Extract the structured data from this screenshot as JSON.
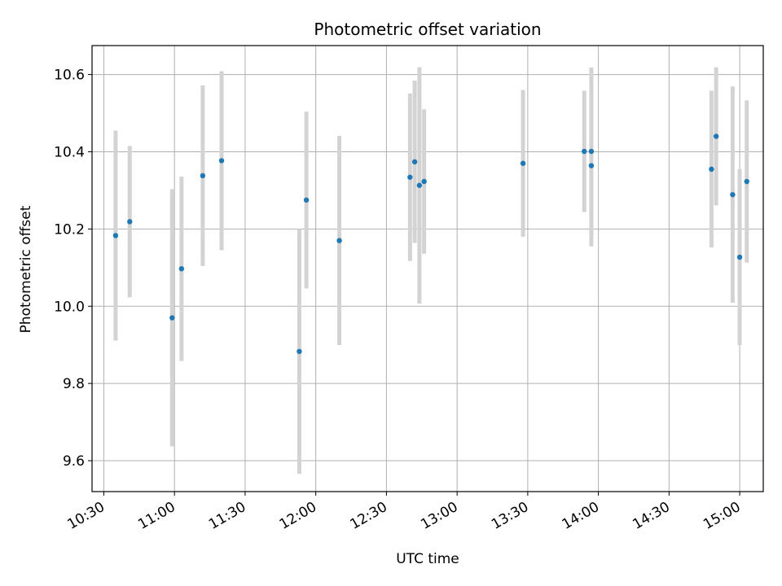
{
  "chart_data": {
    "type": "scatter",
    "title": "Photometric offset variation",
    "xlabel": "UTC time",
    "ylabel": "Photometric offset",
    "xlim": [
      "10:25",
      "15:10"
    ],
    "ylim": [
      9.52,
      10.675
    ],
    "grid": true,
    "x_ticks": [
      "10:30",
      "11:00",
      "11:30",
      "12:00",
      "12:30",
      "13:00",
      "13:30",
      "14:00",
      "14:30",
      "15:00"
    ],
    "y_ticks": [
      9.6,
      9.8,
      10.0,
      10.2,
      10.4,
      10.6
    ],
    "y_tick_labels": [
      "9.6",
      "9.8",
      "10.0",
      "10.2",
      "10.4",
      "10.6"
    ],
    "marker_color": "#1f77b4",
    "errorbar_color": "#d3d3d3",
    "series": [
      {
        "points": [
          {
            "t": "10:35",
            "y": 10.183,
            "err": 0.272
          },
          {
            "t": "10:41",
            "y": 10.219,
            "err": 0.196
          },
          {
            "t": "10:59",
            "y": 9.97,
            "err": 0.333
          },
          {
            "t": "11:03",
            "y": 10.097,
            "err": 0.239
          },
          {
            "t": "11:12",
            "y": 10.338,
            "err": 0.234
          },
          {
            "t": "11:20",
            "y": 10.377,
            "err": 0.232
          },
          {
            "t": "11:53",
            "y": 9.883,
            "err": 0.317
          },
          {
            "t": "11:56",
            "y": 10.275,
            "err": 0.229
          },
          {
            "t": "12:10",
            "y": 10.17,
            "err": 0.271
          },
          {
            "t": "12:40",
            "y": 10.334,
            "err": 0.217
          },
          {
            "t": "12:42",
            "y": 10.374,
            "err": 0.21
          },
          {
            "t": "12:44",
            "y": 10.313,
            "err": 0.306
          },
          {
            "t": "12:46",
            "y": 10.323,
            "err": 0.187
          },
          {
            "t": "13:28",
            "y": 10.37,
            "err": 0.19
          },
          {
            "t": "13:54",
            "y": 10.401,
            "err": 0.157
          },
          {
            "t": "13:57",
            "y": 10.364,
            "err": 0.209
          },
          {
            "t": "13:57",
            "y": 10.401,
            "err": 0.217
          },
          {
            "t": "14:48",
            "y": 10.355,
            "err": 0.203
          },
          {
            "t": "14:50",
            "y": 10.44,
            "err": 0.179
          },
          {
            "t": "14:57",
            "y": 10.289,
            "err": 0.28
          },
          {
            "t": "15:00",
            "y": 10.127,
            "err": 0.228
          },
          {
            "t": "15:03",
            "y": 10.323,
            "err": 0.21
          }
        ]
      }
    ]
  }
}
